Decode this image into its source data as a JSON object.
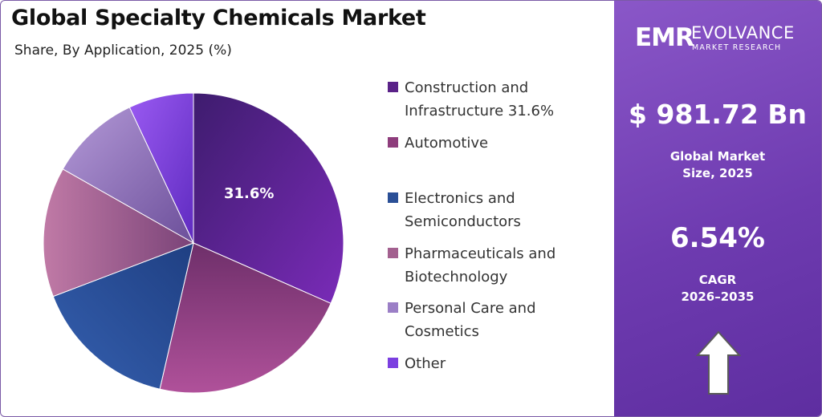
{
  "panel": {
    "brand_mark": "EMR",
    "brand_name": "EVOLVANCE",
    "brand_sub": "MARKET RESEARCH",
    "market_size": "$ 981.72 Bn",
    "market_size_label_1": "Global Market",
    "market_size_label_2": "Size, 2025",
    "cagr_value": "6.54%",
    "cagr_label_1": "CAGR",
    "cagr_label_2": "2026–2035",
    "arrow_icon": "up-arrow-icon"
  },
  "chart_data": {
    "type": "pie",
    "title": "Global Specialty Chemicals Market",
    "subtitle": "Share, By Application, 2025 (%)",
    "legend_position": "right",
    "slices": [
      {
        "label_line1": "Construction and",
        "label_line2": "Infrastructure 31.6%",
        "value": 31.6,
        "data_label": "31.6%",
        "color": "#5a2288"
      },
      {
        "label_line1": "Automotive",
        "label_line2": "",
        "value": 22.0,
        "data_label": "",
        "color": "#8e3d7c"
      },
      {
        "label_line1": "Electronics and",
        "label_line2": "Semiconductors",
        "value": 15.6,
        "data_label": "",
        "color": "#2a4f96"
      },
      {
        "label_line1": "Pharmaceuticals and",
        "label_line2": "Biotechnology",
        "value": 14.0,
        "data_label": "",
        "color": "#a3608f"
      },
      {
        "label_line1": "Personal Care and",
        "label_line2": "Cosmetics",
        "value": 9.8,
        "data_label": "",
        "color": "#9b7fc6"
      },
      {
        "label_line1": "Other",
        "label_line2": "",
        "value": 7.0,
        "data_label": "",
        "color": "#7b3fe0"
      }
    ]
  }
}
